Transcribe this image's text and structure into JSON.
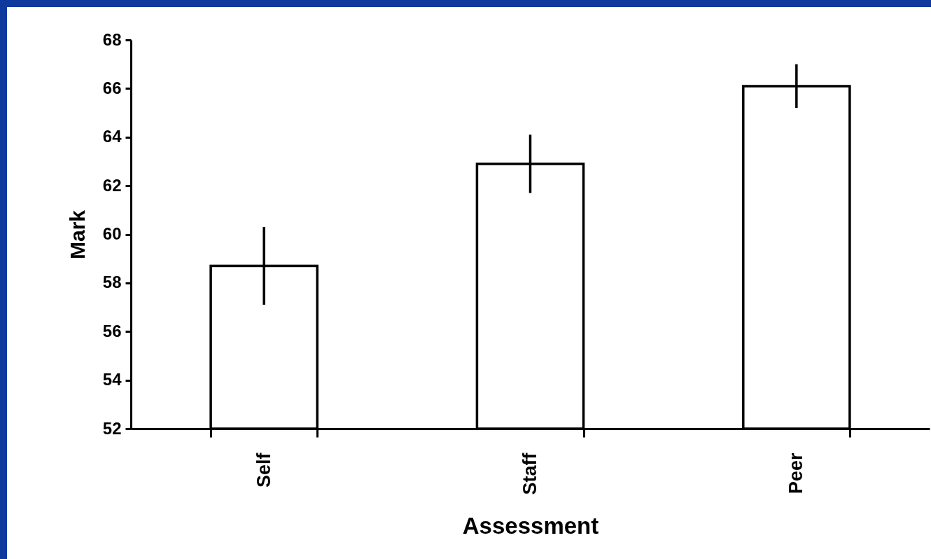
{
  "chart_data": {
    "type": "bar",
    "xlabel": "Assessment",
    "ylabel": "Mark",
    "categories": [
      "Self",
      "Staff",
      "Peer"
    ],
    "values": [
      58.7,
      62.9,
      66.1
    ],
    "errors": [
      1.6,
      1.2,
      0.9
    ],
    "color": "#ffffff",
    "ylim": [
      52,
      68
    ],
    "yticks": [
      52,
      54,
      56,
      58,
      60,
      62,
      64,
      66,
      68
    ],
    "grid": false
  }
}
